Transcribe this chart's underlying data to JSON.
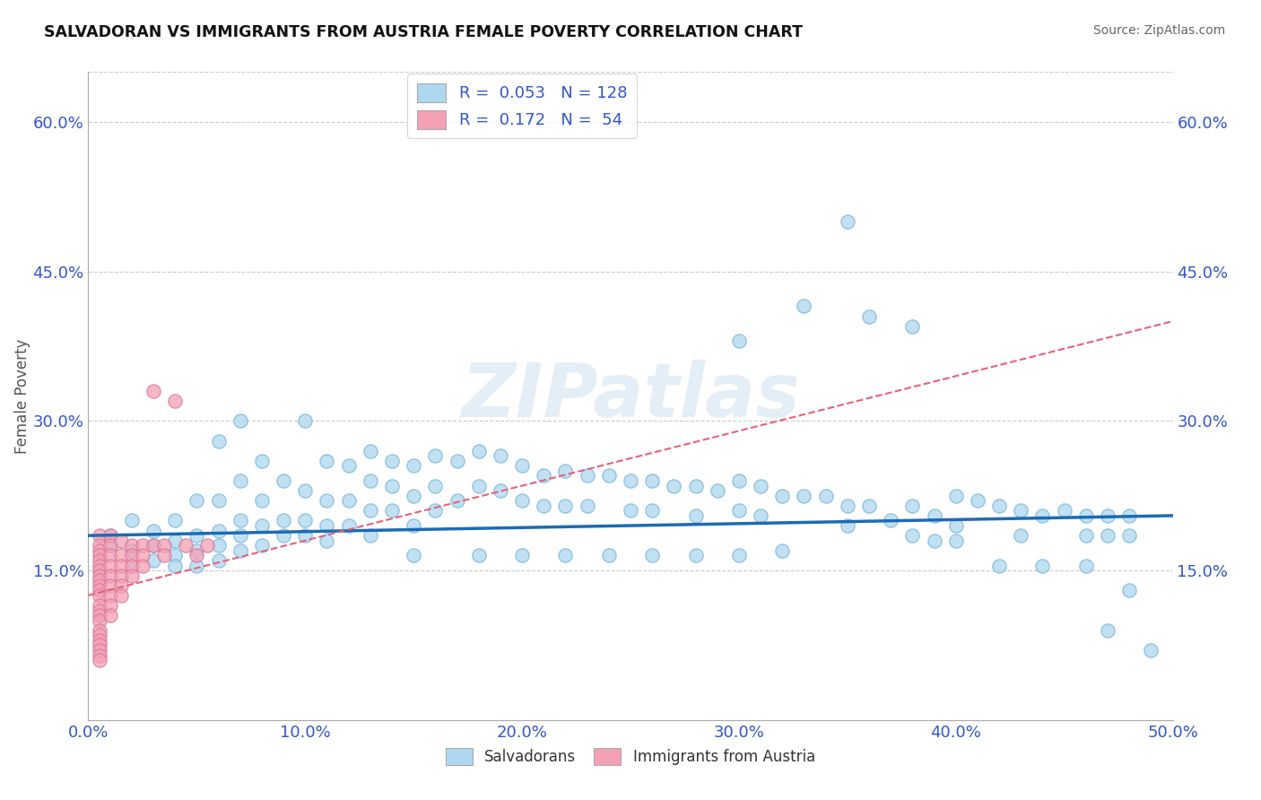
{
  "title": "SALVADORAN VS IMMIGRANTS FROM AUSTRIA FEMALE POVERTY CORRELATION CHART",
  "source": "Source: ZipAtlas.com",
  "ylabel_label": "Female Poverty",
  "xlim": [
    0.0,
    0.5
  ],
  "ylim": [
    0.0,
    0.65
  ],
  "xticks": [
    0.0,
    0.1,
    0.2,
    0.3,
    0.4,
    0.5
  ],
  "yticks": [
    0.15,
    0.3,
    0.45,
    0.6
  ],
  "ytick_labels": [
    "15.0%",
    "30.0%",
    "45.0%",
    "60.0%"
  ],
  "xtick_labels": [
    "0.0%",
    "10.0%",
    "20.0%",
    "30.0%",
    "40.0%",
    "50.0%"
  ],
  "blue_R": 0.053,
  "blue_N": 128,
  "pink_R": 0.172,
  "pink_N": 54,
  "blue_color": "#ADD8F0",
  "pink_color": "#F4A0B5",
  "blue_line_color": "#1C6BB5",
  "pink_line_color": "#E8607A",
  "grid_color": "#cccccc",
  "background_color": "#ffffff",
  "watermark": "ZIPatlas",
  "blue_scatter": [
    [
      0.01,
      0.185
    ],
    [
      0.01,
      0.175
    ],
    [
      0.02,
      0.2
    ],
    [
      0.02,
      0.17
    ],
    [
      0.02,
      0.155
    ],
    [
      0.03,
      0.19
    ],
    [
      0.03,
      0.175
    ],
    [
      0.03,
      0.16
    ],
    [
      0.04,
      0.2
    ],
    [
      0.04,
      0.18
    ],
    [
      0.04,
      0.165
    ],
    [
      0.04,
      0.155
    ],
    [
      0.05,
      0.22
    ],
    [
      0.05,
      0.185
    ],
    [
      0.05,
      0.17
    ],
    [
      0.05,
      0.155
    ],
    [
      0.06,
      0.28
    ],
    [
      0.06,
      0.22
    ],
    [
      0.06,
      0.19
    ],
    [
      0.06,
      0.175
    ],
    [
      0.06,
      0.16
    ],
    [
      0.07,
      0.3
    ],
    [
      0.07,
      0.24
    ],
    [
      0.07,
      0.2
    ],
    [
      0.07,
      0.185
    ],
    [
      0.07,
      0.17
    ],
    [
      0.08,
      0.26
    ],
    [
      0.08,
      0.22
    ],
    [
      0.08,
      0.195
    ],
    [
      0.08,
      0.175
    ],
    [
      0.09,
      0.24
    ],
    [
      0.09,
      0.2
    ],
    [
      0.09,
      0.185
    ],
    [
      0.1,
      0.3
    ],
    [
      0.1,
      0.23
    ],
    [
      0.1,
      0.2
    ],
    [
      0.1,
      0.185
    ],
    [
      0.11,
      0.26
    ],
    [
      0.11,
      0.22
    ],
    [
      0.11,
      0.195
    ],
    [
      0.11,
      0.18
    ],
    [
      0.12,
      0.255
    ],
    [
      0.12,
      0.22
    ],
    [
      0.12,
      0.195
    ],
    [
      0.13,
      0.27
    ],
    [
      0.13,
      0.24
    ],
    [
      0.13,
      0.21
    ],
    [
      0.13,
      0.185
    ],
    [
      0.14,
      0.26
    ],
    [
      0.14,
      0.235
    ],
    [
      0.14,
      0.21
    ],
    [
      0.15,
      0.255
    ],
    [
      0.15,
      0.225
    ],
    [
      0.15,
      0.195
    ],
    [
      0.16,
      0.265
    ],
    [
      0.16,
      0.235
    ],
    [
      0.16,
      0.21
    ],
    [
      0.17,
      0.26
    ],
    [
      0.17,
      0.22
    ],
    [
      0.18,
      0.27
    ],
    [
      0.18,
      0.235
    ],
    [
      0.19,
      0.265
    ],
    [
      0.19,
      0.23
    ],
    [
      0.2,
      0.255
    ],
    [
      0.2,
      0.22
    ],
    [
      0.21,
      0.245
    ],
    [
      0.21,
      0.215
    ],
    [
      0.22,
      0.25
    ],
    [
      0.22,
      0.215
    ],
    [
      0.23,
      0.245
    ],
    [
      0.23,
      0.215
    ],
    [
      0.24,
      0.245
    ],
    [
      0.25,
      0.24
    ],
    [
      0.25,
      0.21
    ],
    [
      0.26,
      0.24
    ],
    [
      0.26,
      0.21
    ],
    [
      0.27,
      0.235
    ],
    [
      0.28,
      0.235
    ],
    [
      0.28,
      0.205
    ],
    [
      0.29,
      0.23
    ],
    [
      0.3,
      0.38
    ],
    [
      0.3,
      0.24
    ],
    [
      0.3,
      0.21
    ],
    [
      0.31,
      0.235
    ],
    [
      0.31,
      0.205
    ],
    [
      0.32,
      0.225
    ],
    [
      0.33,
      0.225
    ],
    [
      0.34,
      0.225
    ],
    [
      0.35,
      0.215
    ],
    [
      0.35,
      0.195
    ],
    [
      0.36,
      0.215
    ],
    [
      0.37,
      0.2
    ],
    [
      0.38,
      0.215
    ],
    [
      0.38,
      0.185
    ],
    [
      0.39,
      0.205
    ],
    [
      0.39,
      0.18
    ],
    [
      0.4,
      0.225
    ],
    [
      0.4,
      0.195
    ],
    [
      0.4,
      0.18
    ],
    [
      0.41,
      0.22
    ],
    [
      0.42,
      0.215
    ],
    [
      0.43,
      0.21
    ],
    [
      0.43,
      0.185
    ],
    [
      0.44,
      0.205
    ],
    [
      0.45,
      0.21
    ],
    [
      0.46,
      0.205
    ],
    [
      0.46,
      0.185
    ],
    [
      0.47,
      0.205
    ],
    [
      0.47,
      0.185
    ],
    [
      0.48,
      0.205
    ],
    [
      0.48,
      0.185
    ],
    [
      0.33,
      0.415
    ],
    [
      0.38,
      0.395
    ],
    [
      0.36,
      0.405
    ],
    [
      0.35,
      0.5
    ],
    [
      0.42,
      0.155
    ],
    [
      0.44,
      0.155
    ],
    [
      0.46,
      0.155
    ],
    [
      0.47,
      0.09
    ],
    [
      0.49,
      0.07
    ],
    [
      0.48,
      0.13
    ],
    [
      0.3,
      0.165
    ],
    [
      0.32,
      0.17
    ],
    [
      0.28,
      0.165
    ],
    [
      0.26,
      0.165
    ],
    [
      0.24,
      0.165
    ],
    [
      0.22,
      0.165
    ],
    [
      0.2,
      0.165
    ],
    [
      0.18,
      0.165
    ],
    [
      0.15,
      0.165
    ]
  ],
  "pink_scatter": [
    [
      0.005,
      0.185
    ],
    [
      0.005,
      0.175
    ],
    [
      0.005,
      0.17
    ],
    [
      0.005,
      0.165
    ],
    [
      0.005,
      0.16
    ],
    [
      0.005,
      0.155
    ],
    [
      0.005,
      0.15
    ],
    [
      0.005,
      0.145
    ],
    [
      0.005,
      0.14
    ],
    [
      0.005,
      0.135
    ],
    [
      0.005,
      0.13
    ],
    [
      0.005,
      0.125
    ],
    [
      0.005,
      0.115
    ],
    [
      0.005,
      0.11
    ],
    [
      0.005,
      0.105
    ],
    [
      0.005,
      0.1
    ],
    [
      0.005,
      0.09
    ],
    [
      0.005,
      0.085
    ],
    [
      0.005,
      0.08
    ],
    [
      0.005,
      0.075
    ],
    [
      0.005,
      0.07
    ],
    [
      0.005,
      0.065
    ],
    [
      0.005,
      0.06
    ],
    [
      0.01,
      0.185
    ],
    [
      0.01,
      0.175
    ],
    [
      0.01,
      0.165
    ],
    [
      0.01,
      0.155
    ],
    [
      0.01,
      0.145
    ],
    [
      0.01,
      0.135
    ],
    [
      0.01,
      0.125
    ],
    [
      0.01,
      0.115
    ],
    [
      0.01,
      0.105
    ],
    [
      0.015,
      0.18
    ],
    [
      0.015,
      0.165
    ],
    [
      0.015,
      0.155
    ],
    [
      0.015,
      0.145
    ],
    [
      0.015,
      0.135
    ],
    [
      0.015,
      0.125
    ],
    [
      0.02,
      0.175
    ],
    [
      0.02,
      0.165
    ],
    [
      0.02,
      0.155
    ],
    [
      0.02,
      0.145
    ],
    [
      0.025,
      0.175
    ],
    [
      0.025,
      0.165
    ],
    [
      0.025,
      0.155
    ],
    [
      0.03,
      0.33
    ],
    [
      0.03,
      0.175
    ],
    [
      0.035,
      0.175
    ],
    [
      0.035,
      0.165
    ],
    [
      0.04,
      0.32
    ],
    [
      0.045,
      0.175
    ],
    [
      0.05,
      0.165
    ],
    [
      0.055,
      0.175
    ]
  ],
  "blue_line": {
    "x_start": 0.0,
    "x_end": 0.5,
    "y_start": 0.185,
    "y_end": 0.205
  },
  "pink_line": {
    "x_start": 0.0,
    "x_end": 0.5,
    "y_start": 0.125,
    "y_end": 0.4
  }
}
